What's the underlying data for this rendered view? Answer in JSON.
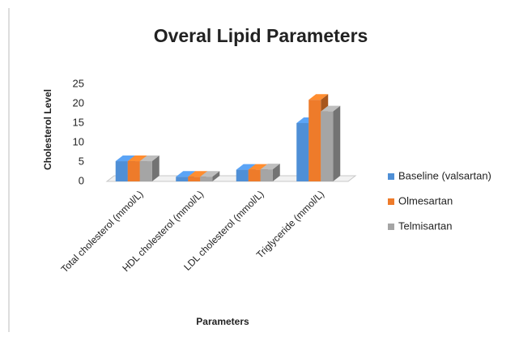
{
  "chart_data": {
    "type": "bar3d",
    "title": "Overal Lipid Parameters",
    "x_label": "Parameters",
    "y_label": "Cholesterol Level",
    "categories": [
      "Total cholesterol (mmol/L)",
      "HDL cholesterol (mmol/L)",
      "LDL cholesterol (mmol/L)",
      "Triglyceride (mmol/L)"
    ],
    "series": [
      {
        "name": "Baseline (valsartan)",
        "color": "#4f8fd6",
        "values": [
          5.2,
          1.2,
          3.0,
          15.0
        ]
      },
      {
        "name": "Olmesartan",
        "color": "#ee7b2a",
        "values": [
          5.2,
          1.2,
          3.0,
          21.0
        ]
      },
      {
        "name": "Telmisartan",
        "color": "#a5a5a5",
        "values": [
          5.2,
          1.2,
          3.1,
          18.0
        ]
      }
    ],
    "ylim": [
      0,
      25
    ],
    "yticks": [
      0,
      5,
      10,
      15,
      20,
      25
    ],
    "grid": false,
    "legend": "right"
  }
}
